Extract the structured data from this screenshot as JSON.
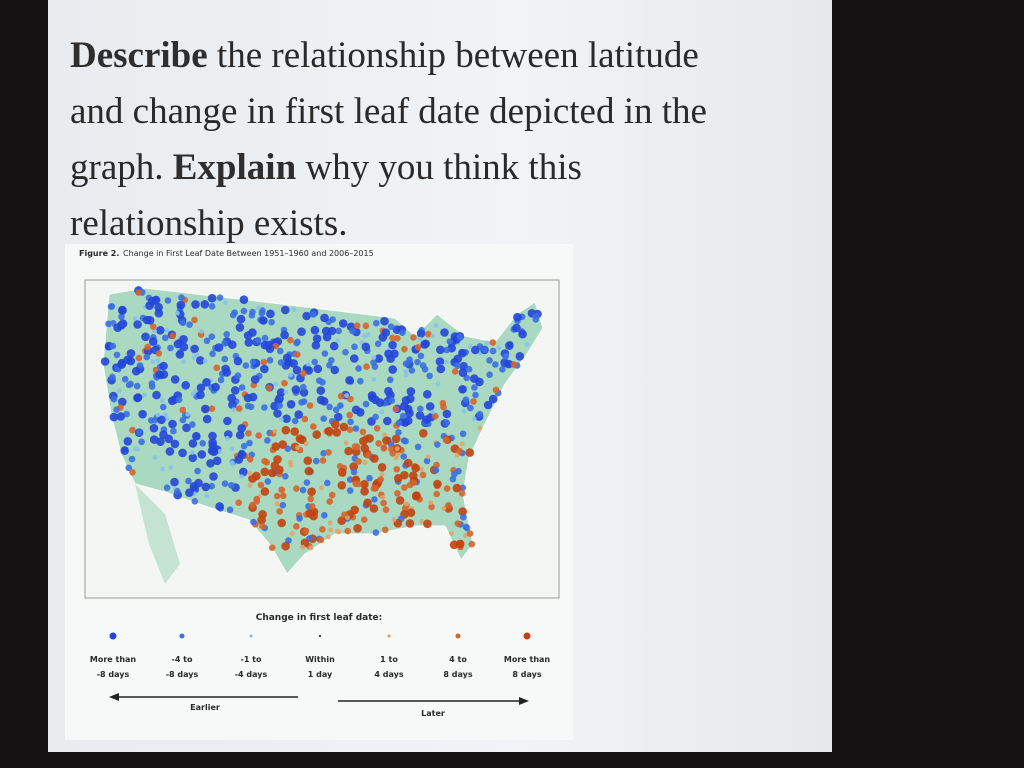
{
  "question": [
    {
      "text": "Describe",
      "bold": true
    },
    {
      "text": "the relationship between latitude and change in first leaf date depicted in the graph.",
      "bold": false
    },
    {
      "text": "Explain",
      "bold": true
    },
    {
      "text": "why you think this relationship exists.",
      "bold": false
    }
  ],
  "figure": {
    "caption_label": "Figure 2.",
    "caption": "Change in First Leaf Date Between 1951–1960 and 2006–2015"
  },
  "legend": {
    "title": "Change in first leaf date:",
    "items": [
      {
        "lines": [
          "More than",
          "-8 days"
        ]
      },
      {
        "lines": [
          "-4 to",
          "-8 days"
        ]
      },
      {
        "lines": [
          "-1 to",
          "-4 days"
        ]
      },
      {
        "lines": [
          "Within",
          "1 day"
        ]
      },
      {
        "lines": [
          "1 to",
          "4 days"
        ]
      },
      {
        "lines": [
          "4 to",
          "8 days"
        ]
      },
      {
        "lines": [
          "More than",
          "8 days"
        ]
      }
    ],
    "earlier": "Earlier",
    "later": "Later"
  }
}
